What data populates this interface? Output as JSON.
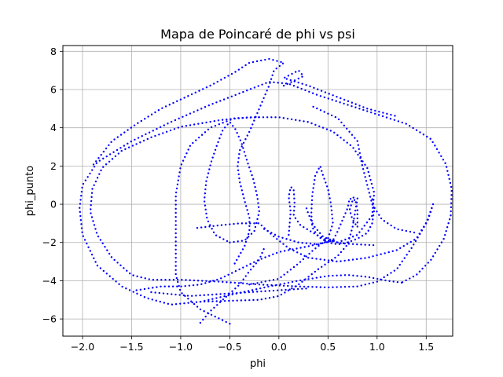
{
  "chart_data": {
    "type": "scatter",
    "title": "Mapa de Poincaré de phi vs psi",
    "xlabel": "phi",
    "ylabel": "phi_punto",
    "xlim": [
      -2.2,
      1.77
    ],
    "ylim": [
      -6.9,
      8.3
    ],
    "xticks": [
      -2.0,
      -1.5,
      -1.0,
      -0.5,
      0.0,
      0.5,
      1.0,
      1.5
    ],
    "xtick_labels": [
      "−2.0",
      "−1.5",
      "−1.0",
      "−0.5",
      "0.0",
      "0.5",
      "1.0",
      "1.5"
    ],
    "yticks": [
      -6,
      -4,
      -2,
      0,
      2,
      4,
      6,
      8
    ],
    "ytick_labels": [
      "−6",
      "−4",
      "−2",
      "0",
      "2",
      "4",
      "6",
      "8"
    ],
    "grid": true,
    "marker_color": "#0000ff",
    "curves": [
      [
        [
          1.57,
          0.0
        ],
        [
          1.52,
          -0.8
        ],
        [
          1.4,
          -1.8
        ],
        [
          1.2,
          -2.4
        ],
        [
          0.9,
          -2.8
        ],
        [
          0.6,
          -3.0
        ],
        [
          0.3,
          -2.8
        ],
        [
          0.1,
          -2.3
        ],
        [
          -0.05,
          -1.7
        ],
        [
          -0.2,
          -1.0
        ],
        [
          -0.4,
          -1.0
        ],
        [
          -0.6,
          -1.1
        ],
        [
          -0.85,
          -1.25
        ]
      ],
      [
        [
          1.57,
          0.0
        ],
        [
          1.5,
          -1.0
        ],
        [
          1.35,
          -2.3
        ],
        [
          1.2,
          -3.4
        ],
        [
          1.0,
          -4.05
        ],
        [
          0.8,
          -4.3
        ],
        [
          0.5,
          -4.35
        ],
        [
          0.2,
          -4.3
        ],
        [
          -0.2,
          -4.2
        ],
        [
          -0.6,
          -4.05
        ],
        [
          -1.0,
          -3.95
        ],
        [
          -1.3,
          -3.95
        ],
        [
          -1.5,
          -3.7
        ],
        [
          -1.7,
          -2.8
        ],
        [
          -1.85,
          -1.6
        ],
        [
          -1.92,
          -0.4
        ],
        [
          -1.9,
          0.8
        ],
        [
          -1.8,
          1.9
        ],
        [
          -1.6,
          2.8
        ],
        [
          -1.3,
          3.5
        ],
        [
          -1.0,
          4.05
        ],
        [
          -0.6,
          4.4
        ],
        [
          -0.3,
          4.55
        ],
        [
          0.0,
          4.55
        ],
        [
          0.3,
          4.3
        ],
        [
          0.55,
          3.8
        ],
        [
          0.75,
          3.0
        ],
        [
          0.9,
          1.9
        ],
        [
          0.97,
          0.6
        ],
        [
          0.95,
          -0.6
        ],
        [
          0.8,
          -1.6
        ],
        [
          0.6,
          -2.0
        ],
        [
          0.45,
          -1.7
        ],
        [
          0.35,
          -1.1
        ],
        [
          0.3,
          -0.5
        ],
        [
          0.28,
          -0.2
        ]
      ],
      [
        [
          1.25,
          -4.1
        ],
        [
          1.1,
          -4.0
        ],
        [
          0.9,
          -3.8
        ],
        [
          0.7,
          -3.7
        ],
        [
          0.5,
          -3.75
        ],
        [
          0.2,
          -4.0
        ],
        [
          -0.1,
          -4.3
        ],
        [
          -0.5,
          -4.75
        ],
        [
          -0.8,
          -5.1
        ],
        [
          -1.1,
          -5.25
        ],
        [
          -1.35,
          -4.9
        ],
        [
          -1.6,
          -4.3
        ],
        [
          -1.85,
          -3.2
        ],
        [
          -2.0,
          -1.6
        ],
        [
          -2.03,
          -0.2
        ],
        [
          -2.0,
          1.0
        ],
        [
          -1.85,
          2.2
        ],
        [
          -1.5,
          3.3
        ],
        [
          -1.1,
          4.3
        ],
        [
          -0.7,
          5.2
        ],
        [
          -0.3,
          6.0
        ],
        [
          -0.1,
          6.4
        ],
        [
          0.1,
          6.3
        ],
        [
          0.4,
          5.7
        ],
        [
          0.7,
          5.2
        ],
        [
          1.0,
          4.7
        ],
        [
          1.3,
          4.2
        ],
        [
          1.55,
          3.4
        ],
        [
          1.7,
          2.1
        ],
        [
          1.76,
          0.8
        ],
        [
          1.75,
          -0.6
        ],
        [
          1.68,
          -1.8
        ],
        [
          1.55,
          -2.9
        ],
        [
          1.4,
          -3.7
        ],
        [
          1.25,
          -4.1
        ]
      ],
      [
        [
          -0.5,
          -6.25
        ],
        [
          -0.8,
          -5.5
        ],
        [
          -1.0,
          -4.6
        ],
        [
          -1.05,
          -3.7
        ],
        [
          -1.05,
          -2.5
        ],
        [
          -1.05,
          -1.0
        ],
        [
          -1.05,
          0.5
        ],
        [
          -1.0,
          2.0
        ],
        [
          -0.9,
          3.1
        ],
        [
          -0.7,
          4.0
        ],
        [
          -0.45,
          4.5
        ],
        [
          -0.2,
          4.55
        ]
      ],
      [
        [
          -0.8,
          -5.1
        ],
        [
          -0.5,
          -5.05
        ],
        [
          -0.2,
          -5.0
        ],
        [
          0.0,
          -4.8
        ],
        [
          0.2,
          -4.2
        ],
        [
          0.4,
          -3.4
        ],
        [
          0.6,
          -2.7
        ],
        [
          0.7,
          -2.1
        ],
        [
          0.75,
          -1.2
        ],
        [
          0.78,
          -0.3
        ],
        [
          0.8,
          0.3
        ],
        [
          0.76,
          0.35
        ],
        [
          0.72,
          -0.3
        ],
        [
          0.75,
          -0.8
        ],
        [
          0.8,
          -1.2
        ],
        [
          0.8,
          -0.3
        ],
        [
          0.78,
          0.2
        ]
      ],
      [
        [
          -0.3,
          -4.2
        ],
        [
          0.0,
          -3.9
        ],
        [
          0.2,
          -3.1
        ],
        [
          0.35,
          -2.4
        ],
        [
          0.5,
          -1.8
        ],
        [
          0.55,
          -1.0
        ],
        [
          0.53,
          0.0
        ],
        [
          0.5,
          0.8
        ],
        [
          0.45,
          1.5
        ],
        [
          0.42,
          2.0
        ],
        [
          0.37,
          1.5
        ],
        [
          0.34,
          0.5
        ],
        [
          0.33,
          -0.5
        ],
        [
          0.34,
          -1.2
        ],
        [
          0.4,
          -1.7
        ],
        [
          0.5,
          -2.0
        ],
        [
          0.6,
          -2.1
        ],
        [
          0.7,
          -2.0
        ],
        [
          0.8,
          -1.8
        ],
        [
          0.9,
          -1.5
        ],
        [
          0.95,
          -1.0
        ],
        [
          0.97,
          -0.3
        ],
        [
          0.95,
          0.3
        ]
      ],
      [
        [
          -0.5,
          -2.0
        ],
        [
          -0.35,
          -1.9
        ],
        [
          -0.25,
          -1.4
        ],
        [
          -0.2,
          -0.4
        ],
        [
          -0.22,
          0.4
        ],
        [
          -0.26,
          1.3
        ],
        [
          -0.32,
          2.2
        ],
        [
          -0.38,
          3.2
        ],
        [
          -0.44,
          3.9
        ],
        [
          -0.5,
          4.3
        ],
        [
          -0.57,
          3.9
        ],
        [
          -0.63,
          3.1
        ],
        [
          -0.69,
          2.2
        ],
        [
          -0.74,
          1.2
        ],
        [
          -0.76,
          0.2
        ],
        [
          -0.73,
          -0.8
        ],
        [
          -0.65,
          -1.6
        ],
        [
          -0.5,
          -2.0
        ]
      ],
      [
        [
          0.1,
          -1.6
        ],
        [
          0.12,
          -0.4
        ],
        [
          0.1,
          0.4
        ],
        [
          0.12,
          0.9
        ],
        [
          0.15,
          0.8
        ],
        [
          0.16,
          0.0
        ],
        [
          0.15,
          -0.6
        ],
        [
          0.22,
          -1.1
        ],
        [
          0.35,
          -1.5
        ],
        [
          0.5,
          -1.9
        ],
        [
          0.65,
          -2.05
        ],
        [
          0.8,
          -2.1
        ],
        [
          1.0,
          -2.15
        ]
      ],
      [
        [
          -0.15,
          -1.3
        ],
        [
          0.0,
          -1.7
        ],
        [
          0.2,
          -2.0
        ],
        [
          0.4,
          -2.1
        ],
        [
          0.55,
          -1.9
        ],
        [
          0.6,
          -1.4
        ],
        [
          0.65,
          -0.8
        ],
        [
          0.7,
          -0.2
        ],
        [
          0.72,
          0.3
        ],
        [
          0.78,
          0.2
        ]
      ],
      [
        [
          -0.8,
          -6.2
        ],
        [
          -0.7,
          -5.6
        ],
        [
          -0.55,
          -4.9
        ],
        [
          -0.4,
          -4.2
        ],
        [
          -0.3,
          -3.5
        ],
        [
          -0.2,
          -2.9
        ],
        [
          -0.15,
          -2.3
        ]
      ],
      [
        [
          -1.45,
          -4.5
        ],
        [
          -1.2,
          -4.3
        ],
        [
          -1.0,
          -4.3
        ],
        [
          -0.8,
          -4.2
        ],
        [
          -0.6,
          -3.9
        ],
        [
          -0.4,
          -3.4
        ],
        [
          -0.2,
          -2.9
        ],
        [
          0.0,
          -2.5
        ],
        [
          0.3,
          -2.2
        ],
        [
          0.55,
          -1.9
        ]
      ],
      [
        [
          -0.45,
          -3.1
        ],
        [
          -0.35,
          -2.2
        ],
        [
          -0.3,
          -1.4
        ],
        [
          -0.3,
          -0.7
        ],
        [
          -0.35,
          0.2
        ],
        [
          -0.4,
          1.2
        ],
        [
          -0.42,
          2.0
        ],
        [
          -0.4,
          2.8
        ],
        [
          -0.3,
          3.8
        ],
        [
          -0.2,
          5.0
        ],
        [
          -0.1,
          6.2
        ],
        [
          -0.05,
          7.0
        ],
        [
          0.05,
          7.4
        ],
        [
          -0.1,
          7.6
        ],
        [
          -0.3,
          7.4
        ],
        [
          -0.45,
          6.9
        ],
        [
          -0.7,
          6.2
        ],
        [
          -0.95,
          5.6
        ],
        [
          -1.2,
          5.0
        ],
        [
          -1.45,
          4.2
        ],
        [
          -1.7,
          3.3
        ],
        [
          -1.9,
          2.0
        ]
      ],
      [
        [
          0.05,
          6.2
        ],
        [
          0.25,
          6.7
        ],
        [
          0.2,
          7.0
        ],
        [
          0.05,
          6.6
        ],
        [
          0.3,
          6.2
        ],
        [
          0.6,
          5.6
        ],
        [
          0.9,
          5.0
        ],
        [
          1.2,
          4.6
        ]
      ],
      [
        [
          0.35,
          5.1
        ],
        [
          0.6,
          4.5
        ],
        [
          0.8,
          3.3
        ],
        [
          0.85,
          2.0
        ],
        [
          0.9,
          1.0
        ],
        [
          0.95,
          0.0
        ],
        [
          1.05,
          -0.8
        ],
        [
          1.2,
          -1.3
        ],
        [
          1.4,
          -1.5
        ]
      ],
      [
        [
          -1.3,
          -4.6
        ],
        [
          -1.1,
          -4.7
        ],
        [
          -0.9,
          -4.8
        ],
        [
          -0.6,
          -4.7
        ],
        [
          -0.3,
          -4.6
        ],
        [
          0.0,
          -4.5
        ],
        [
          0.3,
          -4.4
        ]
      ]
    ]
  }
}
